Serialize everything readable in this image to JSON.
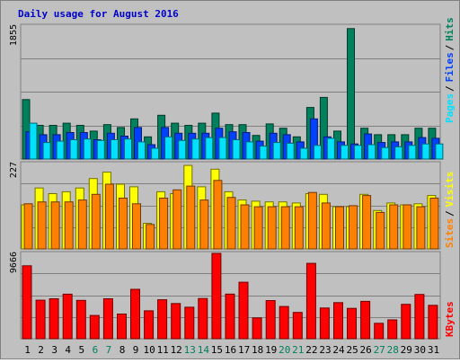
{
  "colors": {
    "background": "#c0c0c0",
    "border": "#808080",
    "title": "#0000cc",
    "hits": "#00805c",
    "files": "#0040ff",
    "pages": "#00e0ff",
    "visits": "#ffff00",
    "sites": "#ff8000",
    "kbytes": "#ff0000",
    "weekday_label": "#000000",
    "weekend_label": "#00805c",
    "grid": "#808080"
  },
  "chart_data": [
    {
      "type": "bar",
      "title": "Daily usage for August 2016",
      "ymax_label": "1855",
      "legend": [
        {
          "name": "Pages",
          "color": "#00e0ff"
        },
        {
          "name": "Files",
          "color": "#0040ff"
        },
        {
          "name": "Hits",
          "color": "#00805c"
        }
      ],
      "ylim": [
        0,
        1855
      ],
      "categories": [
        "1",
        "2",
        "3",
        "4",
        "5",
        "6",
        "7",
        "8",
        "9",
        "10",
        "11",
        "12",
        "13",
        "14",
        "15",
        "16",
        "17",
        "18",
        "19",
        "20",
        "21",
        "22",
        "23",
        "24",
        "25",
        "26",
        "27",
        "28",
        "29",
        "30",
        "31"
      ],
      "weekend_days": [
        "6",
        "7",
        "13",
        "14",
        "20",
        "21",
        "27",
        "28"
      ],
      "series": [
        {
          "name": "Hits",
          "values": [
            830,
            470,
            470,
            500,
            470,
            390,
            480,
            440,
            560,
            310,
            610,
            500,
            470,
            500,
            640,
            480,
            480,
            330,
            490,
            430,
            310,
            720,
            860,
            390,
            1820,
            430,
            340,
            340,
            340,
            430,
            430
          ]
        },
        {
          "name": "Files",
          "values": [
            380,
            340,
            340,
            370,
            370,
            270,
            360,
            320,
            440,
            200,
            440,
            360,
            360,
            360,
            430,
            380,
            370,
            250,
            360,
            340,
            240,
            560,
            310,
            240,
            210,
            350,
            230,
            240,
            240,
            300,
            290
          ]
        },
        {
          "name": "Pages",
          "values": [
            500,
            230,
            250,
            270,
            280,
            260,
            270,
            280,
            240,
            150,
            310,
            260,
            280,
            300,
            300,
            270,
            240,
            180,
            230,
            220,
            150,
            190,
            290,
            190,
            190,
            200,
            160,
            170,
            190,
            210,
            210
          ]
        }
      ]
    },
    {
      "type": "bar",
      "ymax_label": "227",
      "legend": [
        {
          "name": "Sites",
          "color": "#ff8000"
        },
        {
          "name": "Visits",
          "color": "#ffff00"
        }
      ],
      "ylim": [
        0,
        227
      ],
      "categories": [
        "1",
        "2",
        "3",
        "4",
        "5",
        "6",
        "7",
        "8",
        "9",
        "10",
        "11",
        "12",
        "13",
        "14",
        "15",
        "16",
        "17",
        "18",
        "19",
        "20",
        "21",
        "22",
        "23",
        "24",
        "25",
        "26",
        "27",
        "28",
        "29",
        "30",
        "31"
      ],
      "series": [
        {
          "name": "Visits",
          "values": [
            117,
            162,
            147,
            152,
            162,
            187,
            204,
            172,
            165,
            68,
            152,
            147,
            222,
            165,
            212,
            152,
            130,
            127,
            125,
            125,
            122,
            147,
            145,
            112,
            112,
            145,
            102,
            122,
            117,
            120,
            142
          ]
        },
        {
          "name": "Sites",
          "values": [
            120,
            125,
            125,
            125,
            130,
            145,
            172,
            135,
            120,
            65,
            135,
            157,
            167,
            130,
            182,
            137,
            117,
            112,
            112,
            112,
            112,
            150,
            122,
            112,
            115,
            142,
            97,
            117,
            117,
            112,
            135
          ]
        }
      ]
    },
    {
      "type": "bar",
      "ymax_label": "9666",
      "legend": [
        {
          "name": "KBytes",
          "color": "#ff0000"
        }
      ],
      "ylim": [
        0,
        9666
      ],
      "categories": [
        "1",
        "2",
        "3",
        "4",
        "5",
        "6",
        "7",
        "8",
        "9",
        "10",
        "11",
        "12",
        "13",
        "14",
        "15",
        "16",
        "17",
        "18",
        "19",
        "20",
        "21",
        "22",
        "23",
        "24",
        "25",
        "26",
        "27",
        "28",
        "29",
        "30",
        "31"
      ],
      "series": [
        {
          "name": "KBytes",
          "values": [
            8260,
            4360,
            4530,
            5050,
            4340,
            2640,
            4530,
            2800,
            5600,
            3160,
            4420,
            3990,
            3570,
            4560,
            9666,
            5060,
            6400,
            2360,
            4320,
            3650,
            2980,
            8540,
            3480,
            4090,
            3440,
            4230,
            1750,
            2140,
            3900,
            5020,
            3780
          ]
        }
      ]
    }
  ]
}
